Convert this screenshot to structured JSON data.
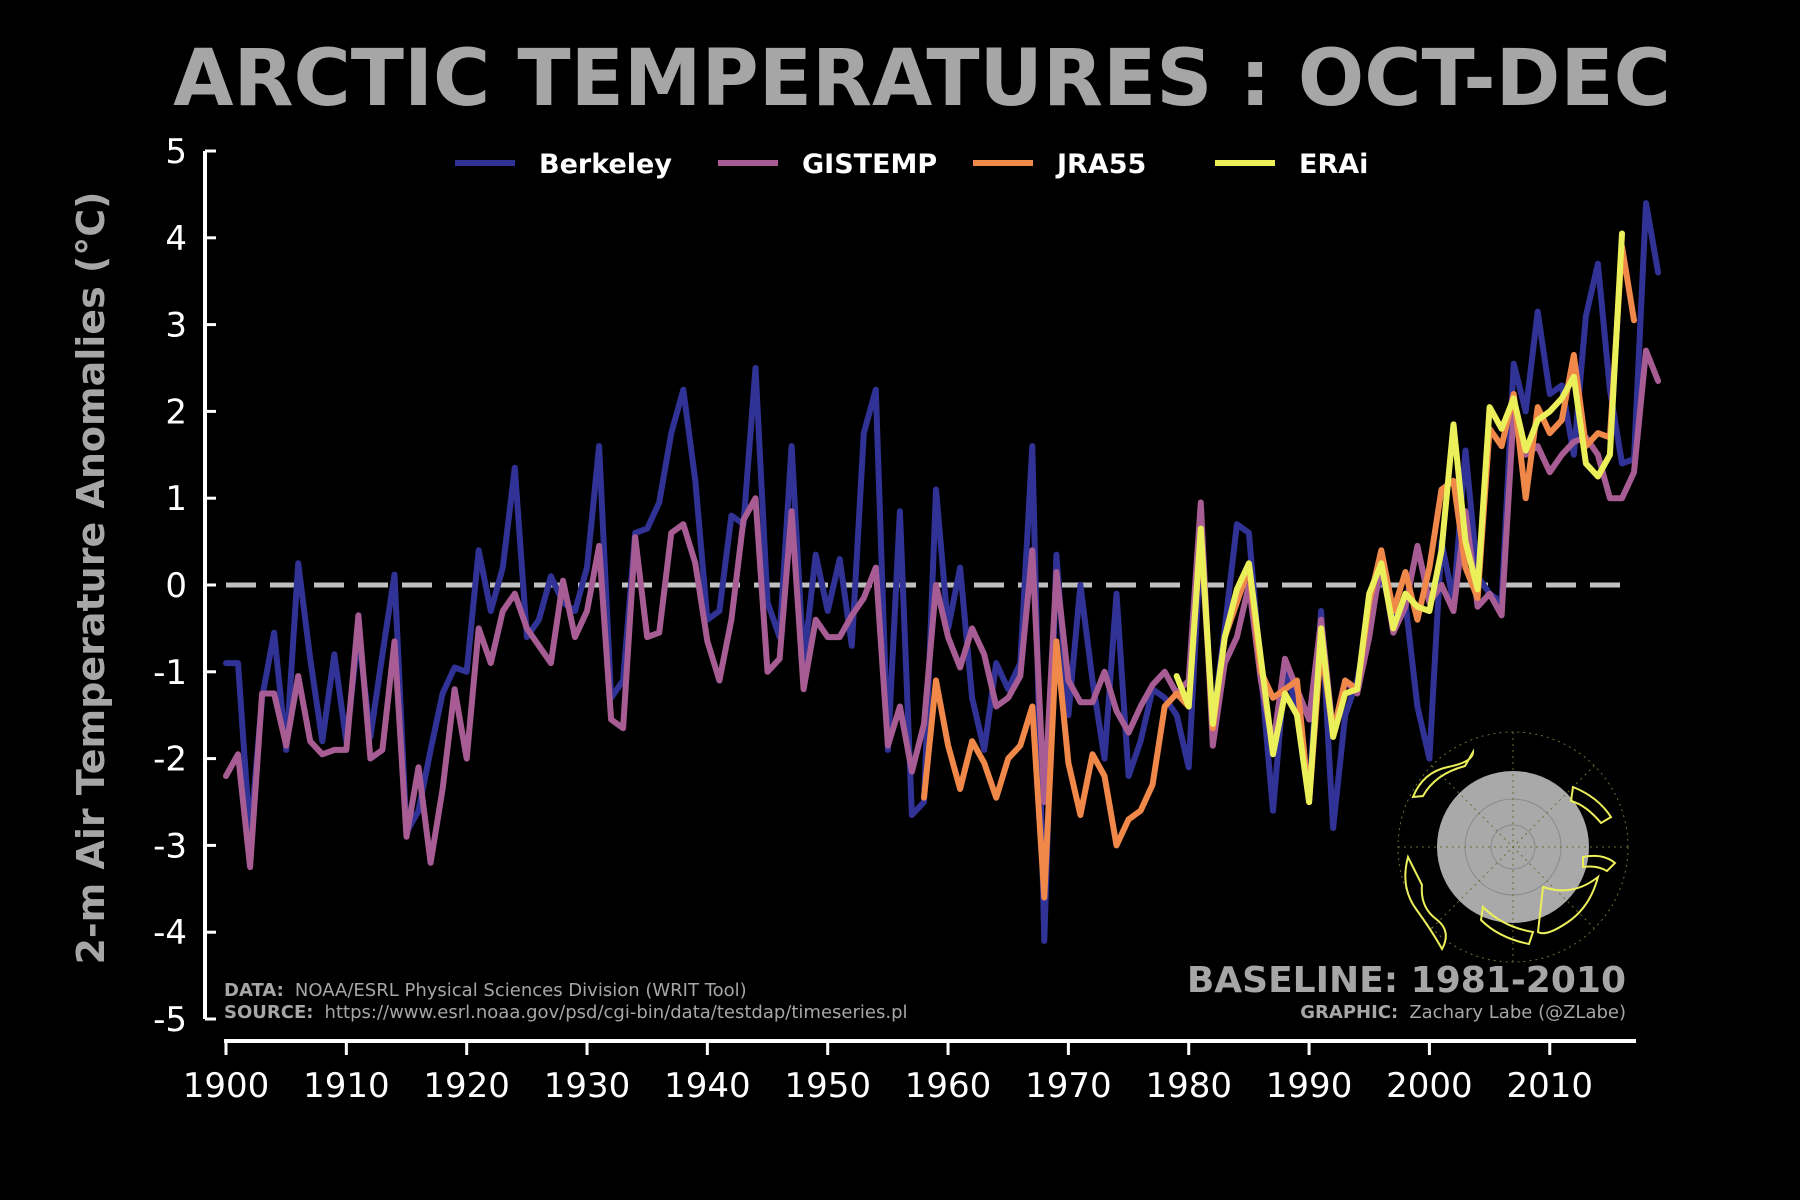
{
  "chart_data": {
    "type": "line",
    "title": "ARCTIC TEMPERATURES : OCT-DEC",
    "ylabel": "2-m Air Temperature Anomalies (°C)",
    "xlabel": "",
    "xlim": [
      1900,
      2017
    ],
    "ylim": [
      -5,
      5
    ],
    "xticks": [
      1900,
      1910,
      1920,
      1930,
      1940,
      1950,
      1960,
      1970,
      1980,
      1990,
      2000,
      2010
    ],
    "yticks": [
      5,
      4,
      3,
      2,
      1,
      0,
      -1,
      -2,
      -3,
      -4,
      -5
    ],
    "zero_line": {
      "y": 0,
      "style": "dashed",
      "color": "#bfbfbf"
    },
    "legend_position": "top",
    "grid": false,
    "series": [
      {
        "name": "Berkeley",
        "color": "#303296",
        "x_start": 1900,
        "values": [
          -0.9,
          -0.9,
          -2.9,
          -1.3,
          -0.55,
          -1.9,
          0.25,
          -0.85,
          -1.8,
          -0.8,
          -1.8,
          -0.55,
          -1.75,
          -0.8,
          0.12,
          -2.85,
          -2.6,
          -1.9,
          -1.25,
          -0.95,
          -1.0,
          0.4,
          -0.3,
          0.2,
          1.35,
          -0.6,
          -0.4,
          0.1,
          -0.2,
          -0.3,
          0.2,
          1.6,
          -1.3,
          -1.1,
          0.6,
          0.65,
          0.95,
          1.75,
          2.25,
          1.2,
          -0.4,
          -0.3,
          0.8,
          0.7,
          2.5,
          -0.2,
          -0.6,
          1.6,
          -0.9,
          0.35,
          -0.3,
          0.3,
          -0.7,
          1.75,
          2.25,
          -1.9,
          0.85,
          -2.65,
          -2.5,
          1.1,
          -0.5,
          0.2,
          -1.3,
          -1.9,
          -0.9,
          -1.2,
          -0.9,
          1.6,
          -4.1,
          0.35,
          -1.5,
          0.0,
          -1.1,
          -2.0,
          -0.1,
          -2.2,
          -1.8,
          -1.2,
          -1.3,
          -1.5,
          -2.1,
          0.5,
          -1.6,
          -0.5,
          0.7,
          0.6,
          -1.0,
          -2.6,
          -1.0,
          -1.4,
          -2.4,
          -0.3,
          -2.8,
          -1.5,
          -1.1,
          -0.4,
          0.15,
          -0.4,
          -0.2,
          -1.4,
          -2.0,
          0.5,
          -0.2,
          1.55,
          0.1,
          -0.1,
          -0.2,
          2.55,
          2.0,
          3.15,
          2.2,
          2.3,
          1.5,
          3.1,
          3.7,
          2.25,
          1.4,
          1.45,
          4.4,
          3.6
        ]
      },
      {
        "name": "GISTEMP",
        "color": "#a75c94",
        "x_start": 1900,
        "values": [
          -2.2,
          -1.95,
          -3.25,
          -1.25,
          -1.25,
          -1.85,
          -1.05,
          -1.8,
          -1.95,
          -1.9,
          -1.9,
          -0.35,
          -2.0,
          -1.9,
          -0.65,
          -2.9,
          -2.1,
          -3.2,
          -2.35,
          -1.2,
          -2.0,
          -0.5,
          -0.9,
          -0.3,
          -0.1,
          -0.5,
          -0.7,
          -0.9,
          0.05,
          -0.6,
          -0.3,
          0.45,
          -1.55,
          -1.65,
          0.55,
          -0.6,
          -0.55,
          0.6,
          0.7,
          0.25,
          -0.65,
          -1.1,
          -0.4,
          0.75,
          1.0,
          -1.0,
          -0.85,
          0.85,
          -1.2,
          -0.4,
          -0.6,
          -0.6,
          -0.35,
          -0.15,
          0.2,
          -1.85,
          -1.4,
          -2.15,
          -1.6,
          0.0,
          -0.6,
          -0.95,
          -0.5,
          -0.8,
          -1.4,
          -1.3,
          -1.05,
          0.4,
          -2.5,
          0.15,
          -1.1,
          -1.35,
          -1.35,
          -1.0,
          -1.45,
          -1.7,
          -1.4,
          -1.15,
          -1.0,
          -1.25,
          -1.1,
          0.95,
          -1.85,
          -0.9,
          -0.6,
          0.0,
          -1.1,
          -1.85,
          -0.85,
          -1.2,
          -1.55,
          -0.4,
          -1.7,
          -1.1,
          -1.25,
          -0.6,
          0.3,
          -0.55,
          -0.25,
          0.45,
          -0.2,
          0.0,
          -0.3,
          0.85,
          -0.25,
          -0.1,
          -0.35,
          2.0,
          1.5,
          1.6,
          1.3,
          1.5,
          1.65,
          1.7,
          1.5,
          1.0,
          1.0,
          1.3,
          2.7,
          2.35
        ]
      },
      {
        "name": "JRA55",
        "color": "#f0884a",
        "x_start": 1958,
        "values": [
          -2.45,
          -1.1,
          -1.85,
          -2.35,
          -1.8,
          -2.05,
          -2.45,
          -2.0,
          -1.85,
          -1.4,
          -3.6,
          -0.65,
          -2.05,
          -2.65,
          -1.95,
          -2.2,
          -3.0,
          -2.7,
          -2.6,
          -2.3,
          -1.4,
          -1.25,
          -1.4,
          0.6,
          -1.65,
          -0.6,
          -0.2,
          0.2,
          -1.0,
          -1.3,
          -1.2,
          -1.1,
          -2.5,
          -0.7,
          -1.7,
          -1.1,
          -1.2,
          -0.2,
          0.4,
          -0.3,
          0.15,
          -0.4,
          0.2,
          1.1,
          1.2,
          0.2,
          -0.15,
          1.8,
          1.6,
          2.2,
          1.0,
          2.05,
          1.75,
          1.9,
          2.65,
          1.6,
          1.75,
          1.7,
          3.9,
          3.05
        ]
      },
      {
        "name": "ERAi",
        "color": "#ebf05a",
        "x_start": 1979,
        "values": [
          -1.05,
          -1.4,
          0.65,
          -1.6,
          -0.6,
          -0.05,
          0.25,
          -0.85,
          -1.95,
          -1.25,
          -1.5,
          -2.5,
          -0.5,
          -1.75,
          -1.25,
          -1.2,
          -0.1,
          0.25,
          -0.5,
          -0.1,
          -0.25,
          -0.3,
          0.4,
          1.85,
          0.5,
          -0.05,
          2.05,
          1.8,
          2.15,
          1.55,
          1.9,
          2.0,
          2.15,
          2.4,
          1.4,
          1.25,
          1.5,
          4.05
        ]
      }
    ],
    "annotations": {
      "data_label": "DATA:",
      "data_text": "NOAA/ESRL Physical Sciences Division (WRIT Tool)",
      "source_label": "SOURCE:",
      "source_text": "https://www.esrl.noaa.gov/psd/cgi-bin/data/testdap/timeseries.pl",
      "baseline": "BASELINE: 1981-2010",
      "graphic_label": "GRAPHIC:",
      "graphic_text": "Zachary Labe (@ZLabe)"
    }
  }
}
